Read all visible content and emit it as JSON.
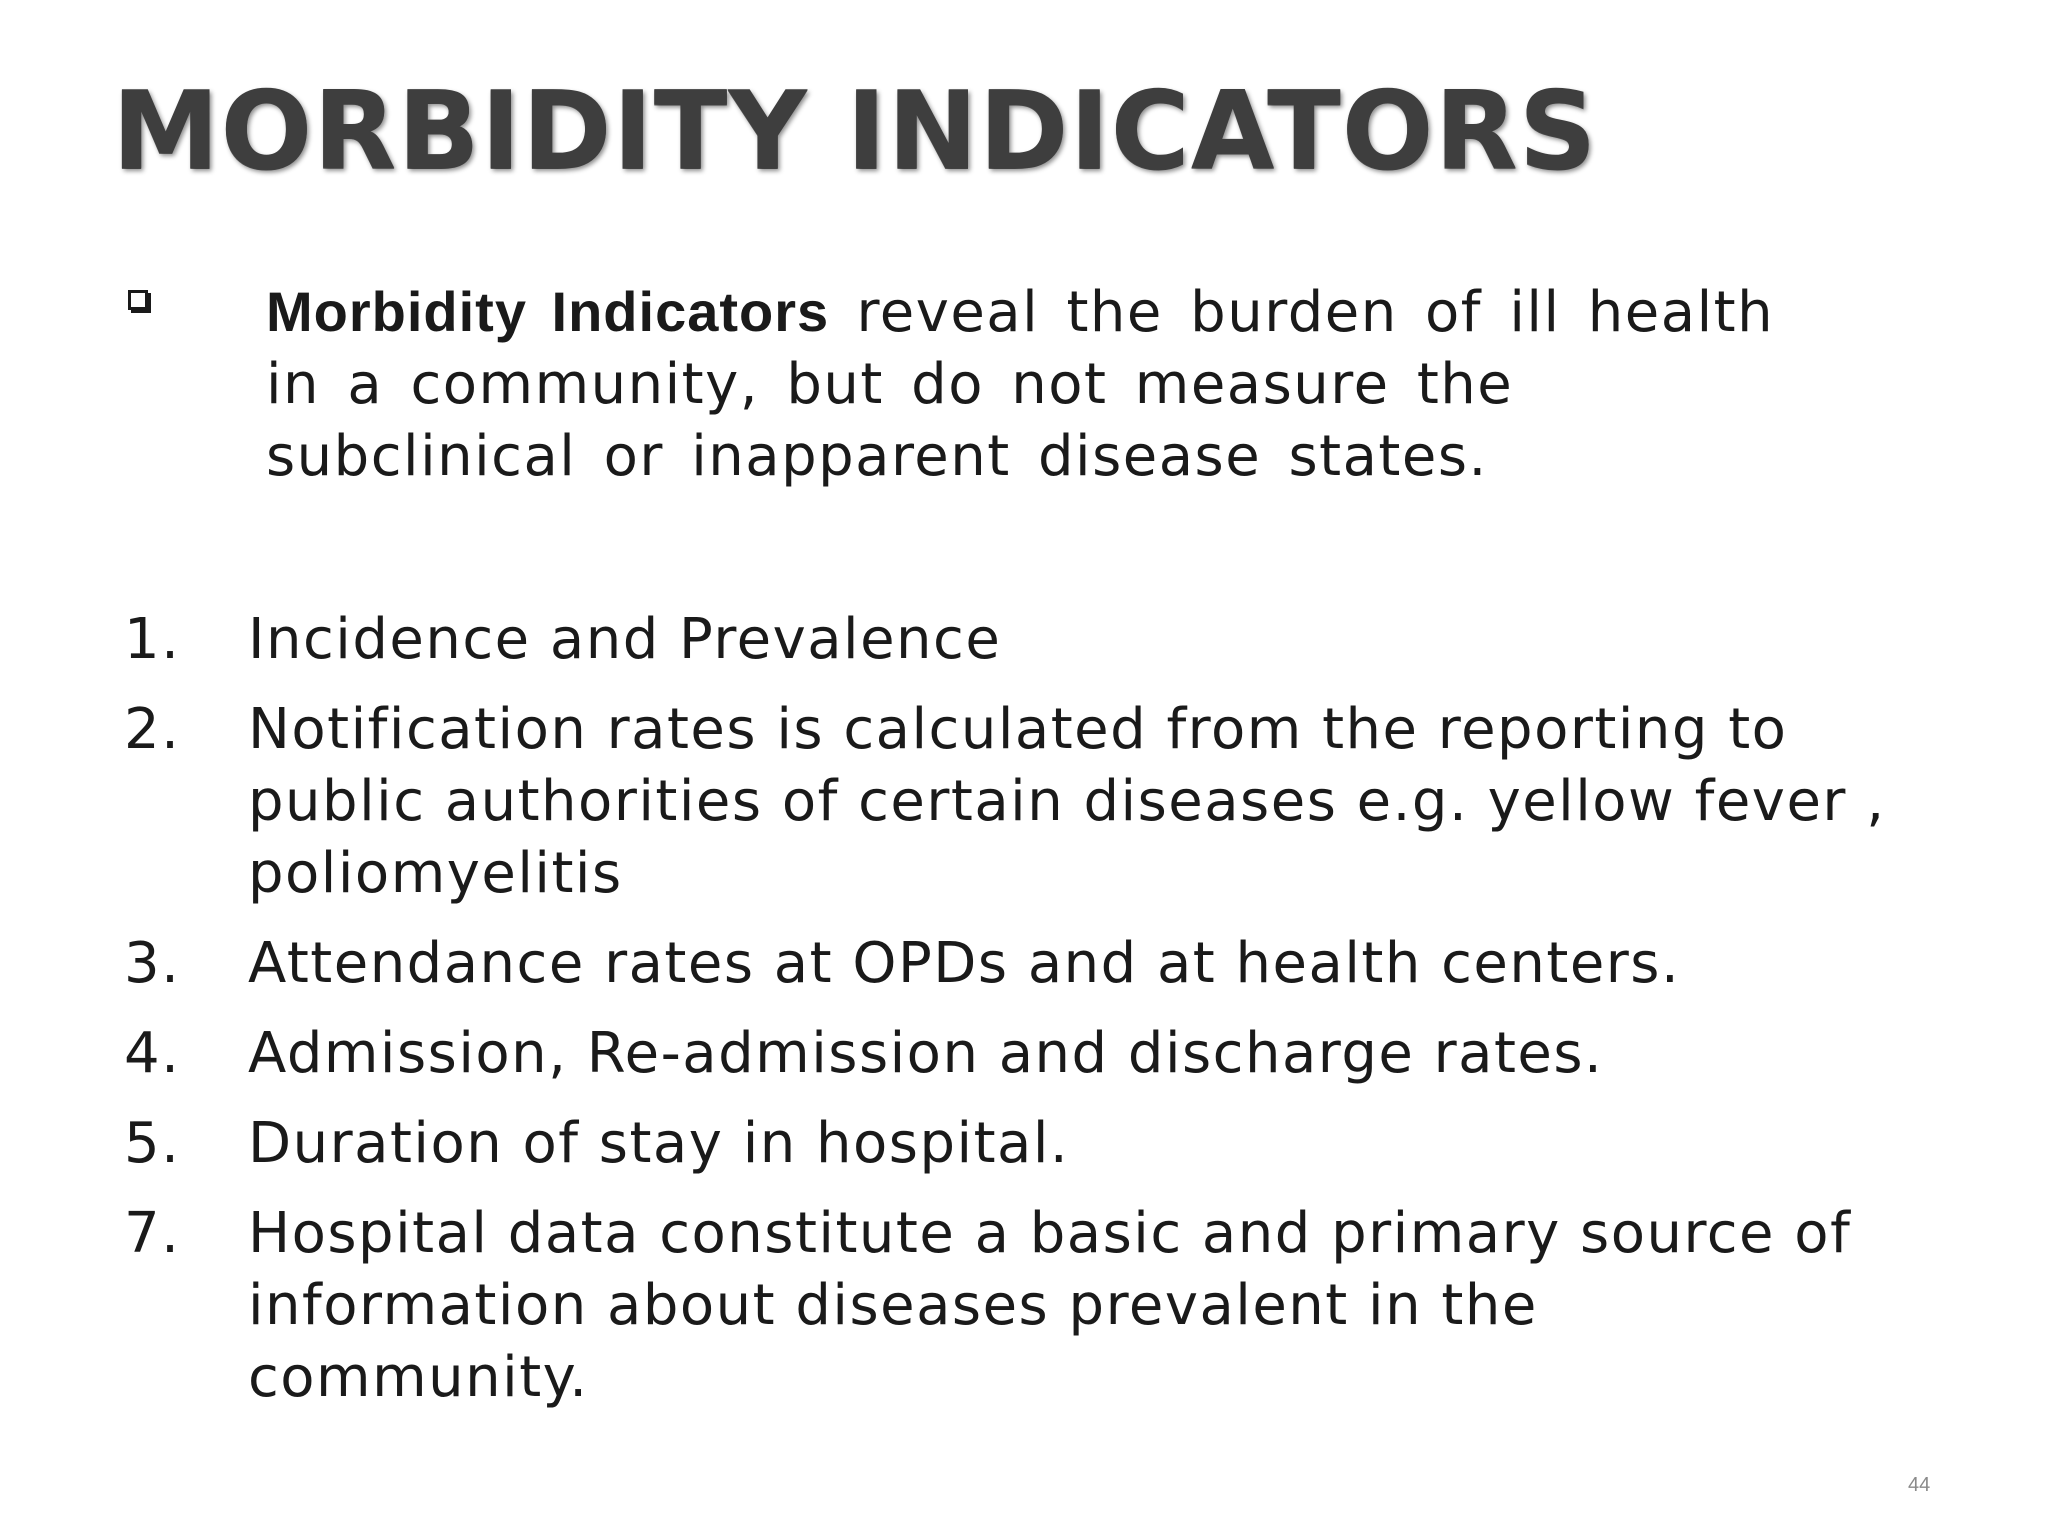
{
  "slide": {
    "title": "MORBIDITY INDICATORS",
    "intro": {
      "bold_lead": "Morbidity Indicators",
      "text": " reveal the burden of ill  health in a community, but do not measure the subclinical or inapparent disease states."
    },
    "items": [
      {
        "number": "1.",
        "text": "Incidence and Prevalence"
      },
      {
        "number": "2.",
        "text": "Notification rates is calculated from the reporting to public authorities of certain diseases e.g. yellow fever , poliomyelitis"
      },
      {
        "number": "3.",
        "text": "Attendance rates at OPDs and at health centers."
      },
      {
        "number": "4.",
        "text": "Admission, Re-admission and discharge rates."
      },
      {
        "number": "5.",
        "text": "Duration of stay in hospital."
      },
      {
        "number": "7.",
        "text": "Hospital data constitute a basic and primary source of  information about diseases prevalent in the  community."
      }
    ],
    "page_number": "44"
  }
}
